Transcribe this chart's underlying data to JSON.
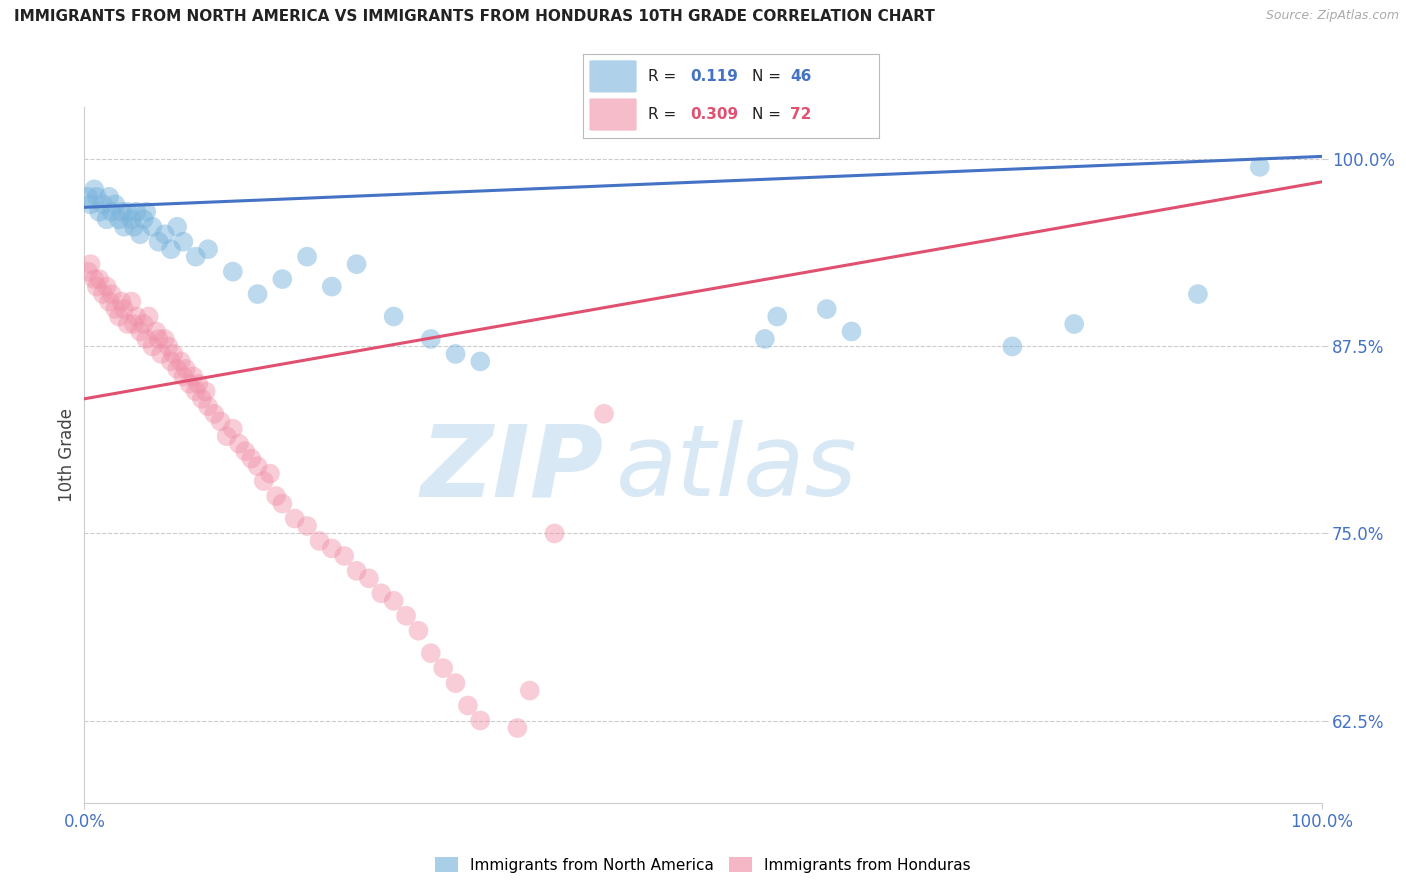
{
  "title": "IMMIGRANTS FROM NORTH AMERICA VS IMMIGRANTS FROM HONDURAS 10TH GRADE CORRELATION CHART",
  "source": "Source: ZipAtlas.com",
  "ylabel": "10th Grade",
  "watermark": "ZIPatlas",
  "legend_blue_label": "Immigrants from North America",
  "legend_pink_label": "Immigrants from Honduras",
  "blue_R": 0.119,
  "blue_N": 46,
  "pink_R": 0.309,
  "pink_N": 72,
  "blue_scatter_x": [
    0.3,
    0.5,
    0.8,
    1.0,
    1.2,
    1.5,
    1.8,
    2.0,
    2.2,
    2.5,
    2.8,
    3.0,
    3.2,
    3.5,
    3.8,
    4.0,
    4.2,
    4.5,
    4.8,
    5.0,
    5.5,
    6.0,
    6.5,
    7.0,
    7.5,
    8.0,
    9.0,
    10.0,
    12.0,
    14.0,
    16.0,
    18.0,
    20.0,
    22.0,
    25.0,
    28.0,
    30.0,
    32.0,
    55.0,
    56.0,
    60.0,
    62.0,
    75.0,
    80.0,
    90.0,
    95.0
  ],
  "blue_scatter_y": [
    97.5,
    97.0,
    98.0,
    97.5,
    96.5,
    97.0,
    96.0,
    97.5,
    96.5,
    97.0,
    96.0,
    96.5,
    95.5,
    96.5,
    96.0,
    95.5,
    96.5,
    95.0,
    96.0,
    96.5,
    95.5,
    94.5,
    95.0,
    94.0,
    95.5,
    94.5,
    93.5,
    94.0,
    92.5,
    91.0,
    92.0,
    93.5,
    91.5,
    93.0,
    89.5,
    88.0,
    87.0,
    86.5,
    88.0,
    89.5,
    90.0,
    88.5,
    87.5,
    89.0,
    91.0,
    99.5
  ],
  "pink_scatter_x": [
    0.3,
    0.5,
    0.8,
    1.0,
    1.2,
    1.5,
    1.8,
    2.0,
    2.2,
    2.5,
    2.8,
    3.0,
    3.2,
    3.5,
    3.8,
    4.0,
    4.2,
    4.5,
    4.8,
    5.0,
    5.2,
    5.5,
    5.8,
    6.0,
    6.2,
    6.5,
    6.8,
    7.0,
    7.2,
    7.5,
    7.8,
    8.0,
    8.2,
    8.5,
    8.8,
    9.0,
    9.2,
    9.5,
    9.8,
    10.0,
    10.5,
    11.0,
    11.5,
    12.0,
    12.5,
    13.0,
    13.5,
    14.0,
    14.5,
    15.0,
    15.5,
    16.0,
    17.0,
    18.0,
    19.0,
    20.0,
    21.0,
    22.0,
    23.0,
    24.0,
    25.0,
    26.0,
    27.0,
    28.0,
    29.0,
    30.0,
    31.0,
    32.0,
    35.0,
    36.0,
    38.0,
    42.0
  ],
  "pink_scatter_y": [
    92.5,
    93.0,
    92.0,
    91.5,
    92.0,
    91.0,
    91.5,
    90.5,
    91.0,
    90.0,
    89.5,
    90.5,
    90.0,
    89.0,
    90.5,
    89.0,
    89.5,
    88.5,
    89.0,
    88.0,
    89.5,
    87.5,
    88.5,
    88.0,
    87.0,
    88.0,
    87.5,
    86.5,
    87.0,
    86.0,
    86.5,
    85.5,
    86.0,
    85.0,
    85.5,
    84.5,
    85.0,
    84.0,
    84.5,
    83.5,
    83.0,
    82.5,
    81.5,
    82.0,
    81.0,
    80.5,
    80.0,
    79.5,
    78.5,
    79.0,
    77.5,
    77.0,
    76.0,
    75.5,
    74.5,
    74.0,
    73.5,
    72.5,
    72.0,
    71.0,
    70.5,
    69.5,
    68.5,
    67.0,
    66.0,
    65.0,
    63.5,
    62.5,
    62.0,
    64.5,
    75.0,
    83.0
  ],
  "xlim": [
    0.0,
    100.0
  ],
  "ylim": [
    57.0,
    103.5
  ],
  "yticks": [
    62.5,
    75.0,
    87.5,
    100.0
  ],
  "ytick_labels": [
    "62.5%",
    "75.0%",
    "87.5%",
    "100.0%"
  ],
  "xtick_labels": [
    "0.0%",
    "100.0%"
  ],
  "blue_line_x0": 0,
  "blue_line_x1": 100,
  "blue_line_y0": 96.8,
  "blue_line_y1": 100.2,
  "pink_line_x0": 0,
  "pink_line_x1": 100,
  "pink_line_y0": 84.0,
  "pink_line_y1": 98.5,
  "blue_scatter_color": "#7ab4dc",
  "pink_scatter_color": "#f090a8",
  "blue_line_color": "#4472c4",
  "pink_line_color": "#e05070",
  "grid_color": "#cccccc",
  "title_fontsize": 11,
  "tick_color": "#4472c4",
  "source_color": "#aaaaaa",
  "watermark_color": "#d8e8f4"
}
